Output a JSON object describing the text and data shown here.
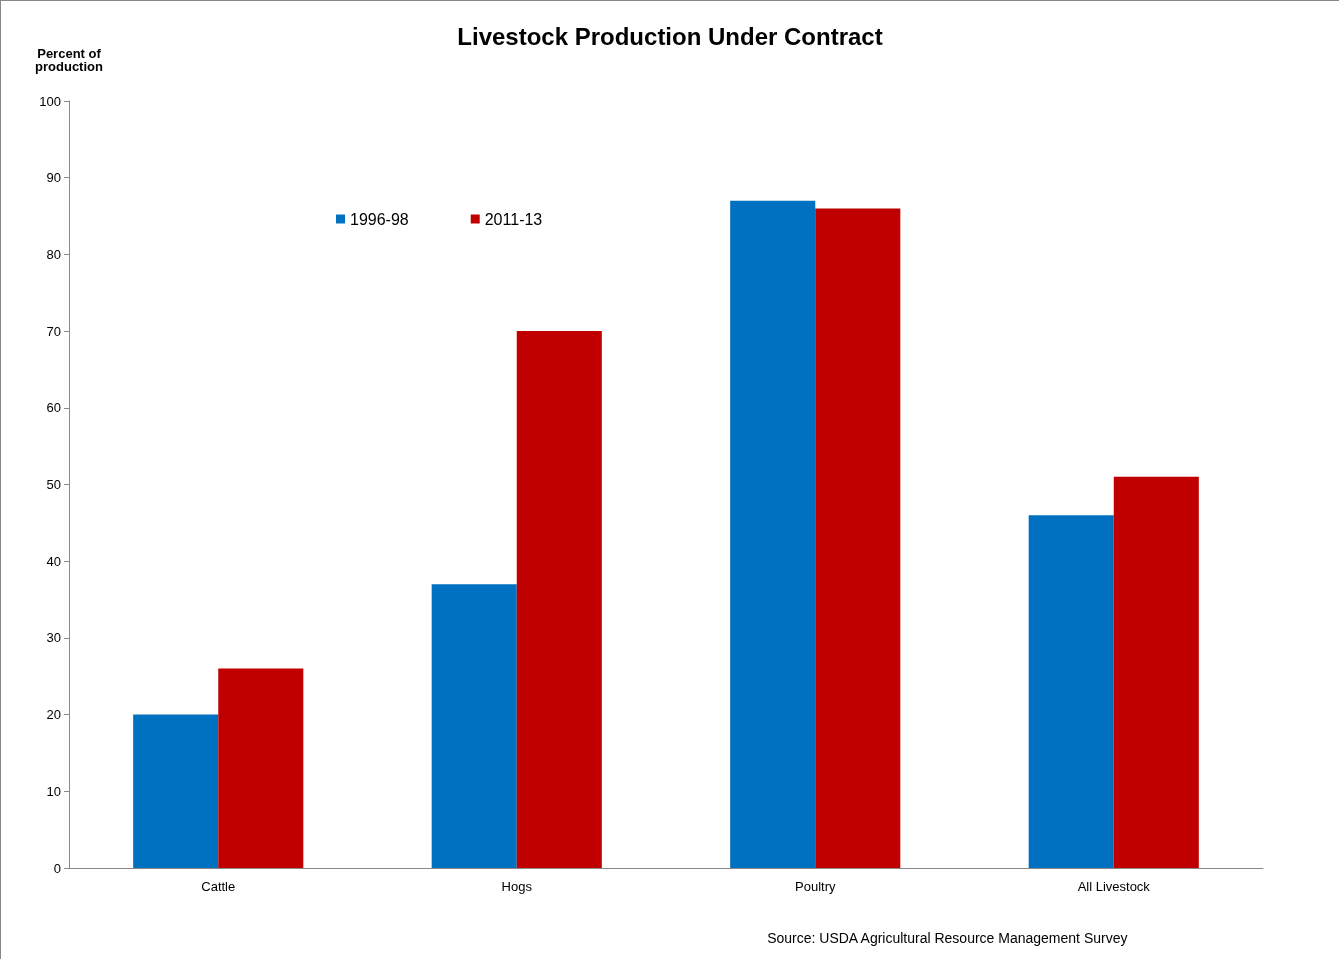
{
  "chart_data": {
    "type": "bar",
    "title": "Livestock Production Under Contract",
    "ylabel": "Percent of\nproduction",
    "categories": [
      "Cattle",
      "Hogs",
      "Poultry",
      "All Livestock"
    ],
    "series": [
      {
        "name": "1996-98",
        "color": "#0070c0",
        "values": [
          20,
          37,
          87,
          46
        ]
      },
      {
        "name": "2011-13",
        "color": "#c00000",
        "values": [
          26,
          70,
          86,
          51
        ]
      }
    ],
    "ylim": [
      0,
      100
    ],
    "yticks": [
      0,
      10,
      20,
      30,
      40,
      50,
      60,
      70,
      80,
      90,
      100
    ],
    "grid": false,
    "legend": "top left",
    "annotations": [
      "Source: USDA Agricultural Resource Management Survey"
    ]
  }
}
